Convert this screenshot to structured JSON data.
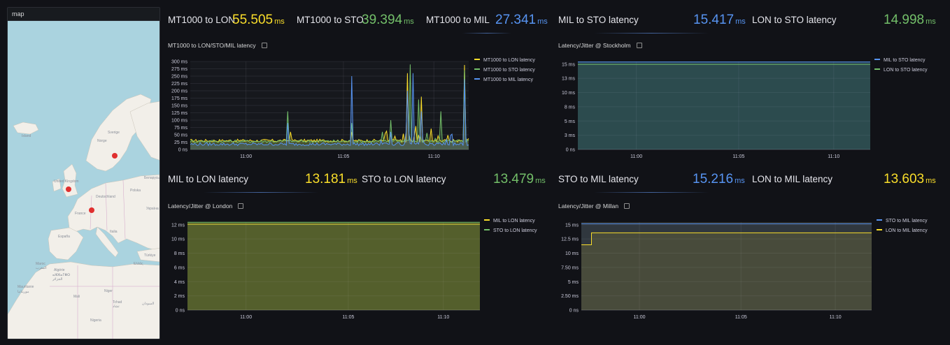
{
  "map": {
    "title": "map",
    "labels": [
      "Island",
      "Sverige",
      "Norge",
      "United Kingdom",
      "Deutschland",
      "France",
      "España",
      "Italia",
      "Polska",
      "Беларусь",
      "Україна",
      "Algérie",
      "ⴰⵣⵣⴰⵢⴻⵔ",
      "الجزائر",
      "Mali",
      "Niger",
      "Tchad",
      "تشاد",
      "Nigeria",
      "Mauritanie",
      "موريتانيا",
      "السودان",
      "Türkiye",
      "Ελλάς",
      "Maroc",
      "المغرب"
    ],
    "marker_color": "#e02f2f"
  },
  "stats": [
    {
      "name": "MT1000 to LON",
      "value": "55.505",
      "unit": "ms",
      "color": "yellow"
    },
    {
      "name": "MT1000 to STO",
      "value": "39.394",
      "unit": "ms",
      "color": "green"
    },
    {
      "name": "MT1000 to MIL",
      "value": "27.341",
      "unit": "ms",
      "color": "blue"
    },
    {
      "name": "MIL to STO latency",
      "value": "15.417",
      "unit": "ms",
      "color": "blue"
    },
    {
      "name": "LON to STO latency",
      "value": "14.998",
      "unit": "ms",
      "color": "green"
    },
    {
      "name": "MIL to LON latency",
      "value": "13.181",
      "unit": "ms",
      "color": "yellow"
    },
    {
      "name": "STO to LON latency",
      "value": "13.479",
      "unit": "ms",
      "color": "green"
    },
    {
      "name": "STO to MIL latency",
      "value": "15.216",
      "unit": "ms",
      "color": "blue"
    },
    {
      "name": "LON to MIL latency",
      "value": "13.603",
      "unit": "ms",
      "color": "yellow"
    }
  ],
  "chart_data": [
    {
      "type": "line",
      "title": "MT1000 to LON/STO/MIL latency",
      "x_ticks": [
        "11:00",
        "11:05",
        "11:10"
      ],
      "x_tick_pos": [
        0.2,
        0.55,
        0.875
      ],
      "y_ticks": [
        "0 ns",
        "25 ms",
        "50 ms",
        "75 ms",
        "100 ms",
        "125 ms",
        "150 ms",
        "175 ms",
        "200 ms",
        "225 ms",
        "250 ms",
        "275 ms",
        "300 ms"
      ],
      "ylim": [
        0,
        300
      ],
      "series": [
        {
          "name": "MT1000 to LON latency",
          "color": "#fade2a",
          "baseline": 30,
          "spikes": [
            [
              0.36,
              60
            ],
            [
              0.58,
              60
            ],
            [
              0.72,
              50
            ],
            [
              0.78,
              260
            ],
            [
              0.81,
              80
            ],
            [
              0.83,
              180
            ],
            [
              0.985,
              260
            ]
          ]
        },
        {
          "name": "MT1000 to STO latency",
          "color": "#73bf69",
          "baseline": 28,
          "spikes": [
            [
              0.35,
              130
            ],
            [
              0.58,
              90
            ],
            [
              0.69,
              60
            ],
            [
              0.72,
              100
            ],
            [
              0.79,
              290
            ],
            [
              0.82,
              140
            ],
            [
              0.9,
              130
            ],
            [
              0.985,
              270
            ]
          ]
        },
        {
          "name": "MT1000 to MIL latency",
          "color": "#5794f2",
          "baseline": 18,
          "spikes": [
            [
              0.35,
              90
            ],
            [
              0.58,
              250
            ],
            [
              0.72,
              60
            ],
            [
              0.78,
              200
            ],
            [
              0.8,
              260
            ],
            [
              0.83,
              130
            ],
            [
              0.985,
              240
            ]
          ]
        }
      ]
    },
    {
      "type": "line",
      "title": "Latency/Jitter @ Stockholm",
      "x_ticks": [
        "11:00",
        "11:05",
        "11:10"
      ],
      "x_tick_pos": [
        0.2,
        0.55,
        0.875
      ],
      "y_ticks": [
        "0 ns",
        "3 ms",
        "5 ms",
        "8 ms",
        "10 ms",
        "13 ms",
        "15 ms"
      ],
      "ylim": [
        0,
        15.5
      ],
      "series": [
        {
          "name": "MIL to STO latency",
          "color": "#5794f2",
          "values": [
            15.42
          ]
        },
        {
          "name": "LON to STO latency",
          "color": "#73bf69",
          "values": [
            15.0
          ]
        }
      ]
    },
    {
      "type": "line",
      "title": "Latency/Jitter @ London",
      "x_ticks": [
        "11:00",
        "11:05",
        "11:10"
      ],
      "x_tick_pos": [
        0.2,
        0.55,
        0.875
      ],
      "y_ticks": [
        "0 ns",
        "2 ms",
        "4 ms",
        "6 ms",
        "8 ms",
        "10 ms",
        "12 ms"
      ],
      "ylim": [
        0,
        13.5
      ],
      "series": [
        {
          "name": "MIL to LON latency",
          "color": "#fade2a",
          "values": [
            13.18
          ]
        },
        {
          "name": "STO to LON latency",
          "color": "#73bf69",
          "values": [
            13.48
          ]
        }
      ]
    },
    {
      "type": "line",
      "title": "Latency/Jitter @ Millan",
      "x_ticks": [
        "11:00",
        "11:05",
        "11:10"
      ],
      "x_tick_pos": [
        0.2,
        0.55,
        0.875
      ],
      "y_ticks": [
        "0 ns",
        "2.50 ms",
        "5 ms",
        "7.50 ms",
        "10 ms",
        "12.5 ms",
        "15 ms"
      ],
      "ylim": [
        0,
        15.5
      ],
      "series": [
        {
          "name": "STO to MIL latency",
          "color": "#5794f2",
          "values": [
            15.22
          ]
        },
        {
          "name": "LON to MIL latency",
          "color": "#fade2a",
          "step": [
            [
              0,
              11.5
            ],
            [
              0.035,
              11.5
            ],
            [
              0.035,
              13.6
            ],
            [
              1,
              13.6
            ]
          ]
        }
      ]
    }
  ]
}
